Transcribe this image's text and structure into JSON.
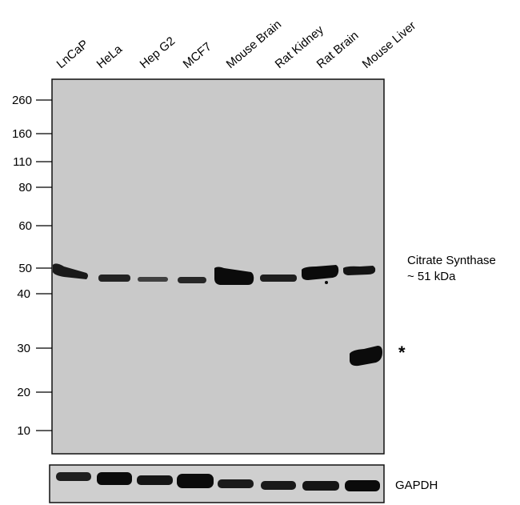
{
  "lanes": [
    "LnCaP",
    "HeLa",
    "Hep G2",
    "MCF7",
    "Mouse Brain",
    "Rat Kidney",
    "Rat Brain",
    "Mouse Liver"
  ],
  "markers": [
    "260",
    "160",
    "110",
    "80",
    "60",
    "50",
    "40",
    "30",
    "20",
    "10"
  ],
  "target": {
    "name": "Citrate Synthase",
    "size": "~ 51 kDa"
  },
  "nonspecific_band_marker": "*",
  "loading_control": "GAPDH",
  "colors": {
    "membrane": "#c8c8c8",
    "band": "#0b0b0b",
    "frame": "#111111"
  },
  "band_intensity": {
    "target": [
      0.7,
      0.65,
      0.45,
      0.55,
      1.0,
      0.6,
      0.9,
      0.75
    ],
    "nonspecific_mouse_liver": 1.0,
    "gapdh": [
      0.75,
      0.9,
      0.8,
      1.0,
      0.7,
      0.75,
      0.8,
      0.8
    ]
  }
}
